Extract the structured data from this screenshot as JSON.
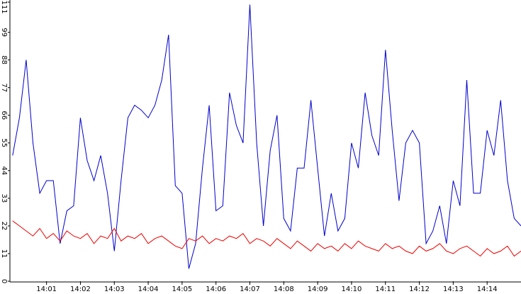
{
  "chart_data": {
    "type": "line",
    "x": [
      0,
      0.2,
      0.4,
      0.6,
      0.8,
      1,
      1.2,
      1.4,
      1.6,
      1.8,
      2,
      2.2,
      2.4,
      2.6,
      2.8,
      3,
      3.2,
      3.4,
      3.6,
      3.8,
      4,
      4.2,
      4.4,
      4.6,
      4.8,
      5,
      5.2,
      5.4,
      5.6,
      5.8,
      6,
      6.2,
      6.4,
      6.6,
      6.8,
      7,
      7.2,
      7.4,
      7.6,
      7.8,
      8,
      8.2,
      8.4,
      8.6,
      8.8,
      9,
      9.2,
      9.4,
      9.6,
      9.8,
      10,
      10.2,
      10.4,
      10.6,
      10.8,
      11,
      11.2,
      11.4,
      11.6,
      11.8,
      12,
      12.2,
      12.4,
      12.6,
      12.8,
      13,
      13.2,
      13.4,
      13.6,
      13.8,
      14,
      14.2,
      14.4,
      14.6,
      14.8,
      15
    ],
    "series": [
      {
        "color": "#0000cc",
        "values": [
          50,
          65,
          88,
          55,
          35,
          40,
          40,
          15,
          28,
          30,
          65,
          48,
          40,
          50,
          35,
          12,
          40,
          65,
          70,
          68,
          65,
          70,
          80,
          98,
          38,
          35,
          5,
          15,
          45,
          70,
          28,
          30,
          75,
          62,
          55,
          110,
          55,
          22,
          52,
          66,
          25,
          20,
          45,
          45,
          72,
          45,
          18,
          35,
          20,
          25,
          55,
          45,
          75,
          58,
          50,
          92,
          60,
          32,
          55,
          60,
          55,
          15,
          20,
          30,
          15,
          40,
          30,
          80,
          35,
          35,
          60,
          50,
          72,
          40,
          25,
          22
        ]
      },
      {
        "color": "#ee0000",
        "values": [
          24,
          22,
          20,
          18,
          21,
          17,
          19,
          16,
          20,
          18,
          17,
          19,
          15,
          18,
          17,
          21,
          16,
          18,
          17,
          19,
          15,
          17,
          18,
          16,
          14,
          13,
          17,
          16,
          18,
          15,
          17,
          16,
          18,
          17,
          19,
          15,
          17,
          16,
          14,
          17,
          15,
          13,
          16,
          14,
          12,
          15,
          13,
          14,
          12,
          15,
          13,
          16,
          14,
          13,
          12,
          15,
          13,
          14,
          12,
          11,
          14,
          12,
          13,
          15,
          12,
          11,
          13,
          14,
          12,
          10,
          13,
          11,
          12,
          14,
          10,
          12
        ]
      }
    ],
    "xlim": [
      -0.08,
      15
    ],
    "xticks": [
      {
        "value": 1,
        "label": "14:01"
      },
      {
        "value": 2,
        "label": "14:02"
      },
      {
        "value": 3,
        "label": "14:03"
      },
      {
        "value": 4,
        "label": "14:04"
      },
      {
        "value": 5,
        "label": "14:05"
      },
      {
        "value": 6,
        "label": "14:06"
      },
      {
        "value": 7,
        "label": "14:07"
      },
      {
        "value": 8,
        "label": "14:08"
      },
      {
        "value": 9,
        "label": "14:09"
      },
      {
        "value": 10,
        "label": "14:10"
      },
      {
        "value": 11,
        "label": "14:11"
      },
      {
        "value": 12,
        "label": "14:12"
      },
      {
        "value": 13,
        "label": "14:13"
      },
      {
        "value": 14,
        "label": "14:14"
      }
    ],
    "ylim": [
      0,
      111
    ],
    "yticks": [
      0,
      11,
      22,
      33,
      44,
      55,
      66,
      77,
      88,
      99,
      111
    ]
  }
}
